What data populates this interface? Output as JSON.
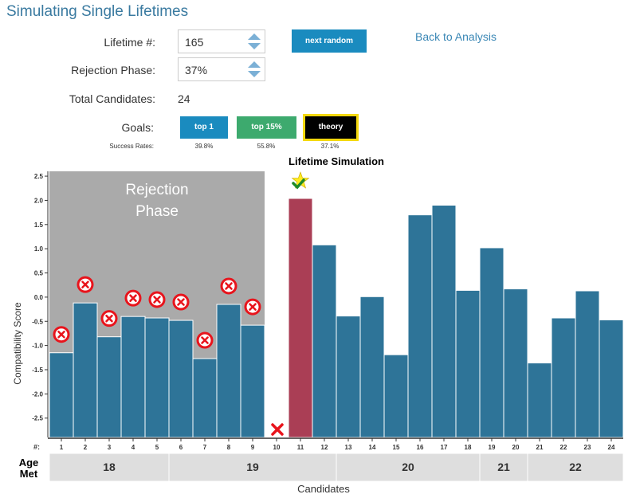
{
  "page": {
    "title": "Simulating Single Lifetimes"
  },
  "controls": {
    "lifetime_label": "Lifetime #:",
    "lifetime_value": "165",
    "rejection_label": "Rejection Phase:",
    "rejection_value": "37%",
    "total_label": "Total Candidates:",
    "total_value": "24",
    "next_random_label": "next random",
    "back_link": "Back to Analysis"
  },
  "goals": {
    "label": "Goals:",
    "success_label": "Success Rates:",
    "items": [
      {
        "label": "top 1",
        "rate": "39.8%",
        "color": "#1a8bbf",
        "selected": false
      },
      {
        "label": "top 15%",
        "rate": "55.8%",
        "color": "#3daa6e",
        "selected": false
      },
      {
        "label": "theory",
        "rate": "37.1%",
        "color": "#000000",
        "selected": true
      }
    ]
  },
  "colors": {
    "bar": "#2e7498",
    "chosen": "#aa3e55",
    "rejection_bg": "#aaaaaa",
    "reject_mark": "#e8141c",
    "star": "#ffec1f"
  },
  "chart_data": {
    "type": "bar",
    "title": "Lifetime Simulation",
    "xlabel": "Candidates",
    "ylabel": "Compatibility Score",
    "ylim": [
      -2.9,
      2.6
    ],
    "yticks": [
      "-2.5",
      "-2.0",
      "-1.5",
      "-1.0",
      "-0.5",
      "0.0",
      "0.5",
      "1.0",
      "1.5",
      "2.0",
      "2.5"
    ],
    "ytick_values": [
      -2.5,
      -2.0,
      -1.5,
      -1.0,
      -0.5,
      0.0,
      0.5,
      1.0,
      1.5,
      2.0,
      2.5
    ],
    "row_label": "#:",
    "age_label": [
      "Age",
      "Met"
    ],
    "rejection_phase_label": [
      "Rejection",
      "Phase"
    ],
    "categories": [
      "1",
      "2",
      "3",
      "4",
      "5",
      "6",
      "7",
      "8",
      "9",
      "10",
      "11",
      "12",
      "13",
      "14",
      "15",
      "16",
      "17",
      "18",
      "19",
      "20",
      "21",
      "22",
      "23",
      "24"
    ],
    "values": [
      -1.15,
      -0.12,
      -0.82,
      -0.4,
      -0.43,
      -0.48,
      -1.27,
      -0.15,
      -0.58,
      null,
      2.04,
      1.08,
      -0.39,
      0.01,
      -1.19,
      1.7,
      1.9,
      0.14,
      1.02,
      0.17,
      -1.36,
      -0.43,
      0.13,
      -0.47
    ],
    "rejection_phase_count": 9,
    "rejected_in_phase": [
      1,
      2,
      3,
      4,
      5,
      6,
      7,
      8,
      9
    ],
    "rejected_outside": [
      10
    ],
    "chosen": 11,
    "age_groups": [
      {
        "label": "18",
        "from": 1,
        "to": 5
      },
      {
        "label": "19",
        "from": 6,
        "to": 12
      },
      {
        "label": "20",
        "from": 13,
        "to": 18
      },
      {
        "label": "21",
        "from": 19,
        "to": 20
      },
      {
        "label": "22",
        "from": 21,
        "to": 24
      }
    ]
  }
}
